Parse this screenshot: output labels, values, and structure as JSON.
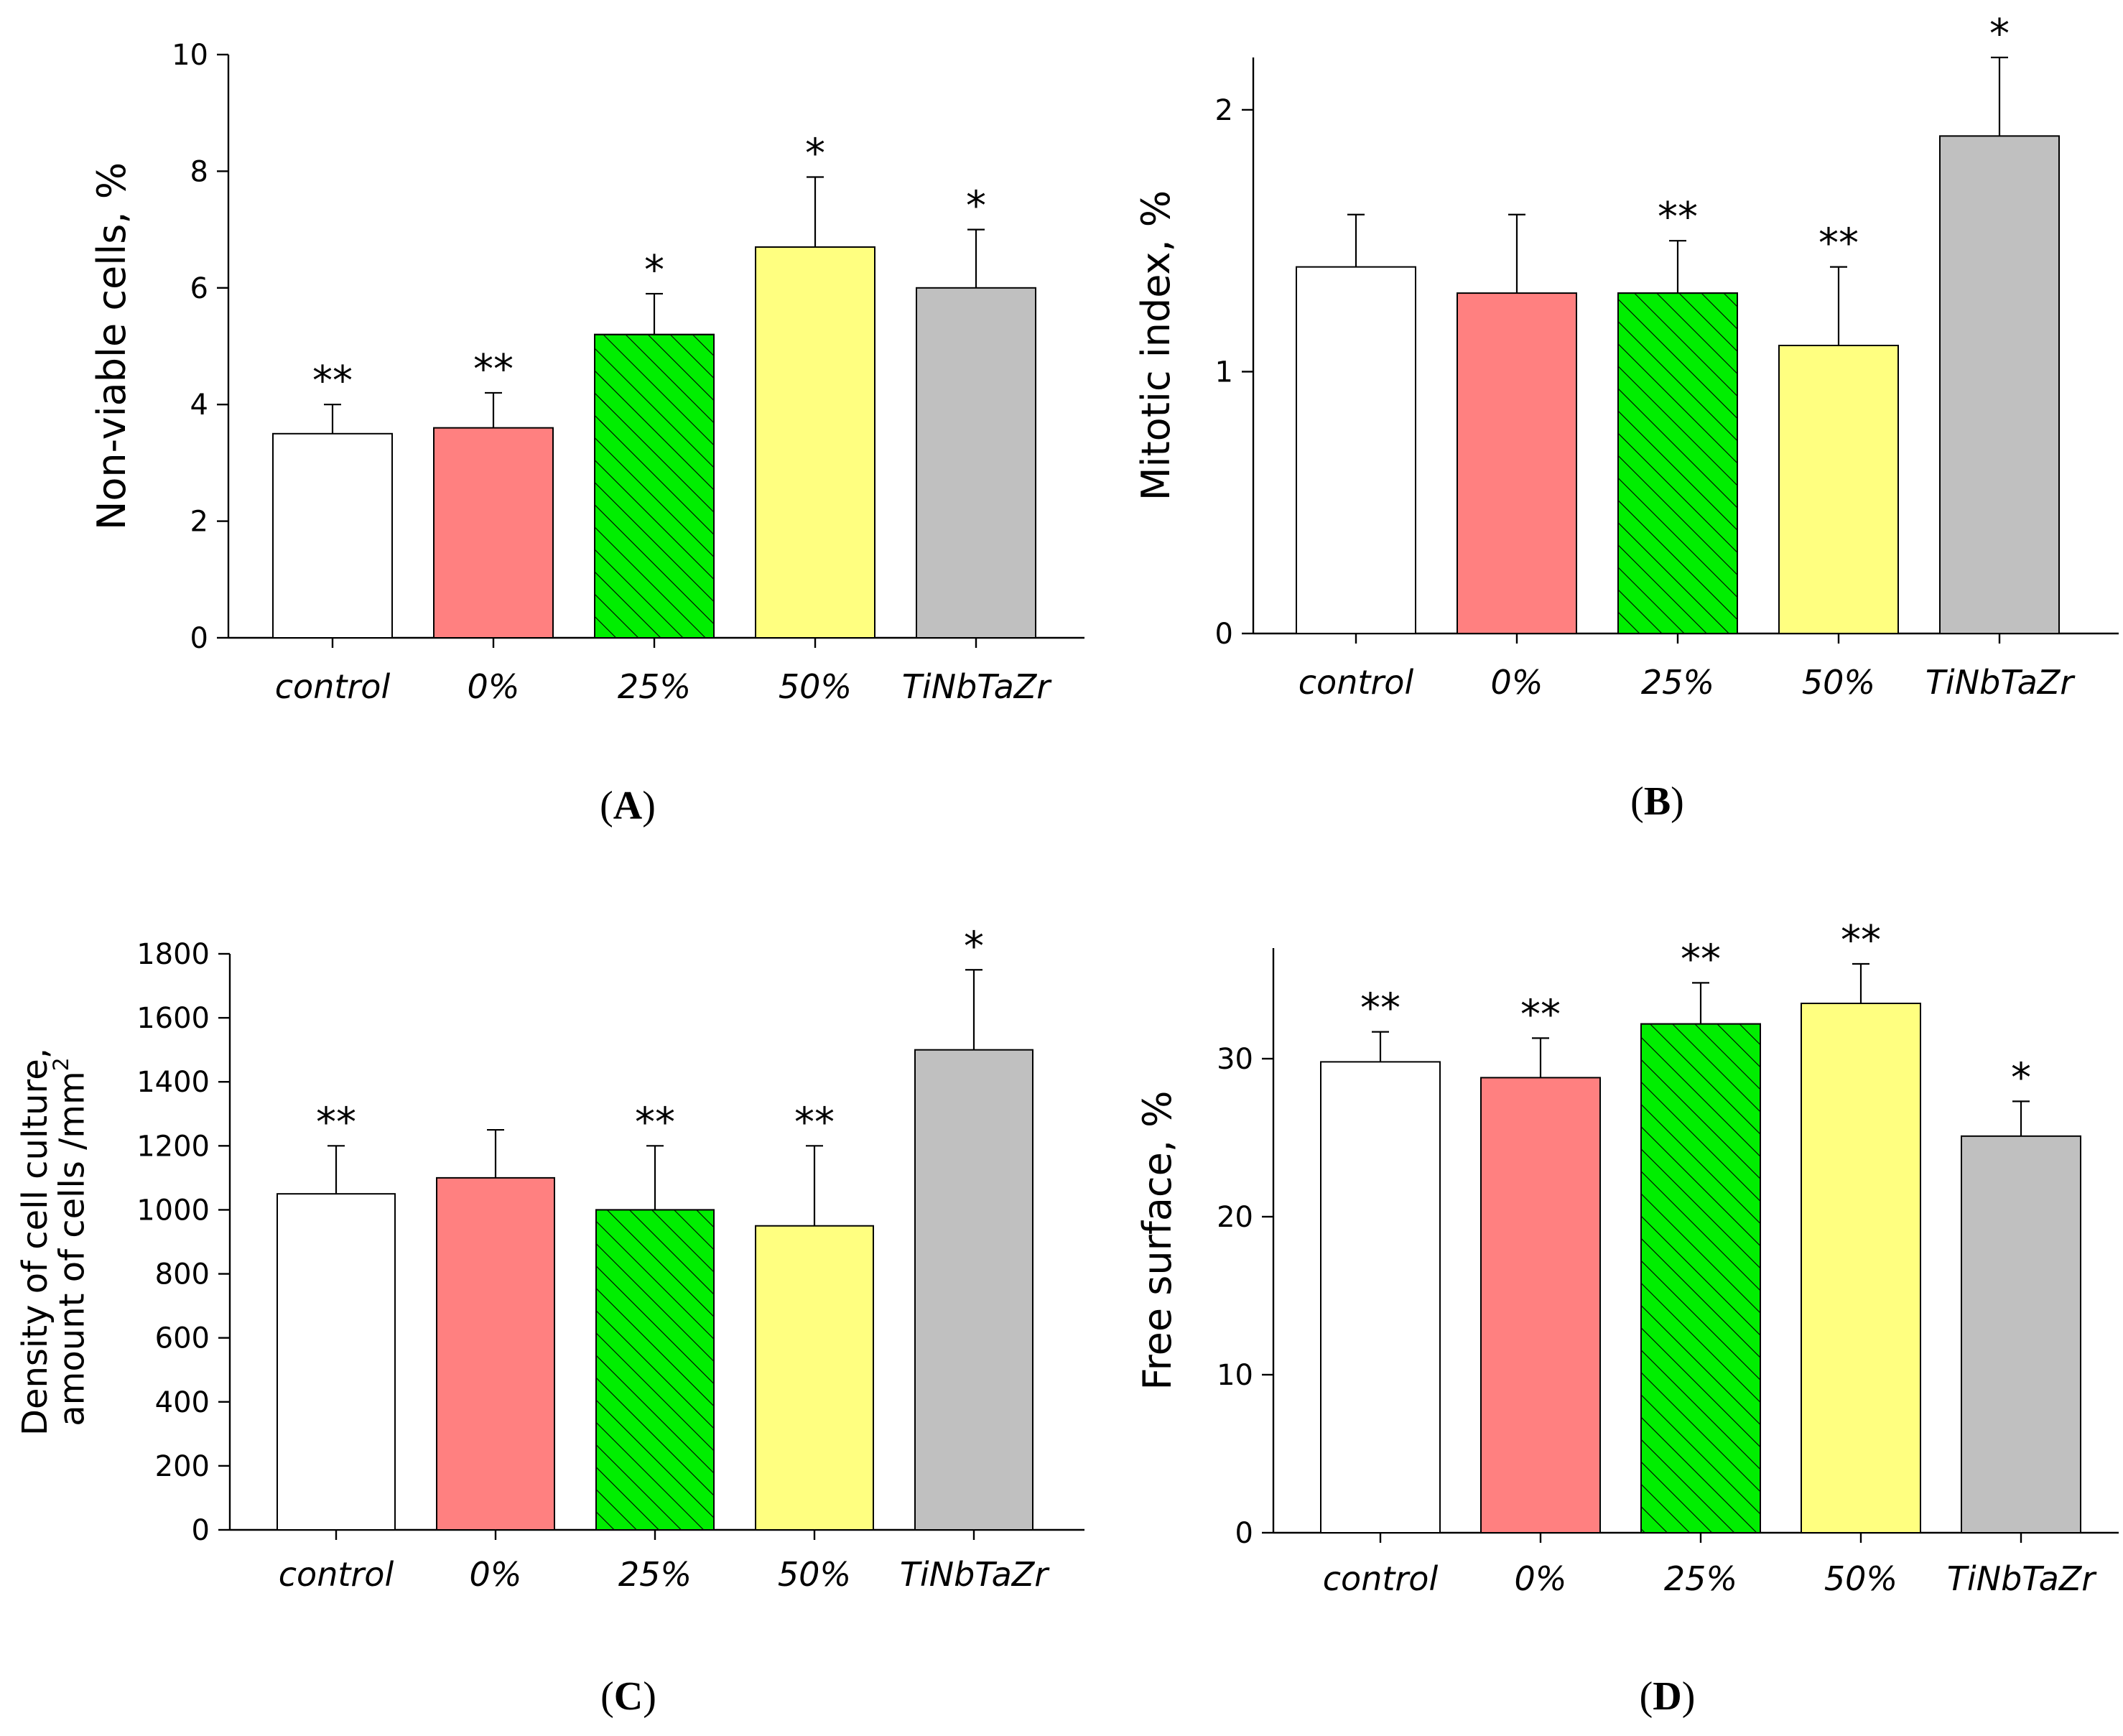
{
  "colors": {
    "axis": "#000000",
    "bar_outline": "#000000",
    "hatch": "#000000"
  },
  "chart_data": [
    {
      "id": "A",
      "type": "bar",
      "panel_label": "A",
      "ylabel": "Non-viable cells,  %",
      "ylabel_lines": [
        "Non-viable cells,  %"
      ],
      "categories": [
        "control",
        "0%",
        "25%",
        "50%",
        "TiNbTaZr"
      ],
      "values": [
        3.5,
        3.6,
        5.2,
        6.7,
        6.0
      ],
      "errors": [
        0.5,
        0.6,
        0.7,
        1.2,
        1.0
      ],
      "significance": [
        "**",
        "**",
        "*",
        "*",
        "*"
      ],
      "ylim": [
        0,
        10
      ],
      "yticks": [
        0,
        2,
        4,
        6,
        8,
        10
      ],
      "bar_colors": [
        "#ffffff",
        "#ff8080",
        "#00ee00",
        "#ffff80",
        "#c0c0c0"
      ],
      "hatched": [
        false,
        false,
        true,
        false,
        false
      ]
    },
    {
      "id": "B",
      "type": "bar",
      "panel_label": "B",
      "ylabel": "Mitotic index,  %",
      "ylabel_lines": [
        "Mitotic index,  %"
      ],
      "categories": [
        "control",
        "0%",
        "25%",
        "50%",
        "TiNbTaZr"
      ],
      "values": [
        1.4,
        1.3,
        1.3,
        1.1,
        1.9
      ],
      "errors": [
        0.2,
        0.3,
        0.2,
        0.3,
        0.3
      ],
      "significance": [
        "",
        "",
        "**",
        "**",
        "*"
      ],
      "ylim": [
        0,
        2.2
      ],
      "yticks": [
        0,
        1,
        2
      ],
      "bar_colors": [
        "#ffffff",
        "#ff8080",
        "#00ee00",
        "#ffff80",
        "#c0c0c0"
      ],
      "hatched": [
        false,
        false,
        true,
        false,
        false
      ]
    },
    {
      "id": "C",
      "type": "bar",
      "panel_label": "C",
      "ylabel": "Density of cell culture, amount of cells /mm",
      "ylabel_lines": [
        "Density of cell culture,",
        "amount of cells /mm"
      ],
      "ylabel_superscript": "2",
      "categories": [
        "control",
        "0%",
        "25%",
        "50%",
        "TiNbTaZr"
      ],
      "values": [
        1050,
        1100,
        1000,
        950,
        1500
      ],
      "errors": [
        150,
        150,
        200,
        250,
        250
      ],
      "significance": [
        "**",
        "",
        "**",
        "**",
        "*"
      ],
      "ylim": [
        0,
        1800
      ],
      "yticks": [
        0,
        200,
        400,
        600,
        800,
        1000,
        1200,
        1400,
        1600,
        1800
      ],
      "bar_colors": [
        "#ffffff",
        "#ff8080",
        "#00ee00",
        "#ffff80",
        "#c0c0c0"
      ],
      "hatched": [
        false,
        false,
        true,
        false,
        false
      ]
    },
    {
      "id": "D",
      "type": "bar",
      "panel_label": "D",
      "ylabel": "Free surface,  %",
      "ylabel_lines": [
        "Free surface,  %"
      ],
      "categories": [
        "control",
        "0%",
        "25%",
        "50%",
        "TiNbTaZr"
      ],
      "values": [
        29.8,
        28.8,
        32.2,
        33.5,
        25.1
      ],
      "errors": [
        1.9,
        2.5,
        2.6,
        2.5,
        2.2
      ],
      "significance": [
        "**",
        "**",
        "**",
        "**",
        "*"
      ],
      "ylim": [
        0,
        37
      ],
      "yticks": [
        0,
        10,
        20,
        30
      ],
      "bar_colors": [
        "#ffffff",
        "#ff8080",
        "#00ee00",
        "#ffff80",
        "#c0c0c0"
      ],
      "hatched": [
        false,
        false,
        true,
        false,
        false
      ]
    }
  ]
}
